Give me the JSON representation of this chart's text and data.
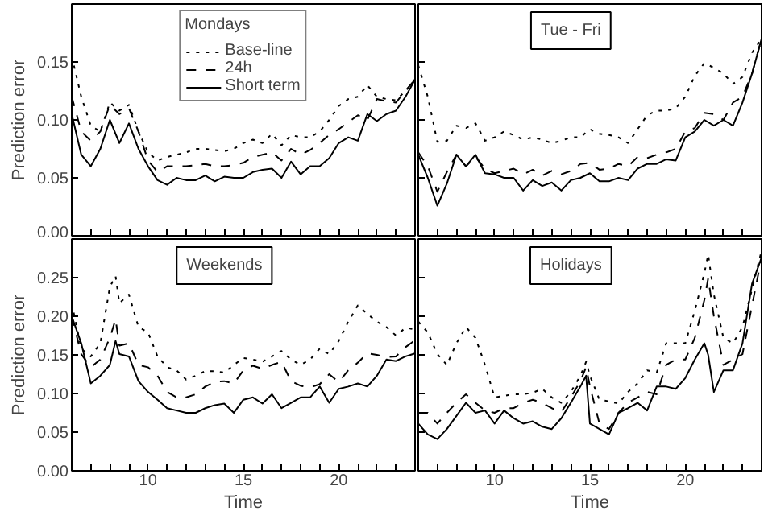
{
  "chart_data": [
    {
      "type": "line",
      "legend_title": "Mondays",
      "ylabel": "Prediction error",
      "legend": "top",
      "grid": false,
      "tick_labels": "y",
      "xlim": [
        6,
        24
      ],
      "ylim": [
        0,
        0.2
      ],
      "xticks": [
        {
          "value": 6,
          "label": null
        },
        {
          "value": 7,
          "label": null
        },
        {
          "value": 8,
          "label": null
        },
        {
          "value": 9,
          "label": null
        },
        {
          "value": 10,
          "label": null
        },
        {
          "value": 11,
          "label": null
        },
        {
          "value": 12,
          "label": null
        },
        {
          "value": 13,
          "label": null
        },
        {
          "value": 14,
          "label": null
        },
        {
          "value": 15,
          "label": null
        },
        {
          "value": 16,
          "label": null
        },
        {
          "value": 17,
          "label": null
        },
        {
          "value": 18,
          "label": null
        },
        {
          "value": 19,
          "label": null
        },
        {
          "value": 20,
          "label": null
        },
        {
          "value": 21,
          "label": null
        },
        {
          "value": 22,
          "label": null
        },
        {
          "value": 23,
          "label": null
        },
        {
          "value": 24,
          "label": null
        }
      ],
      "yticks": [
        {
          "value": 0,
          "label": "0.00"
        },
        {
          "value": 0.05,
          "label": "0.05"
        },
        {
          "value": 0.1,
          "label": "0.10"
        },
        {
          "value": 0.15,
          "label": "0.15"
        }
      ],
      "x": [
        6,
        6.5,
        7,
        7.5,
        8,
        8.5,
        9,
        9.5,
        10,
        10.5,
        11,
        11.5,
        12,
        12.5,
        13,
        13.5,
        14,
        14.5,
        15,
        15.5,
        16,
        16.5,
        17,
        17.5,
        18,
        18.5,
        19,
        19.5,
        20,
        20.5,
        21,
        21.5,
        22,
        22.5,
        23,
        23.5,
        24
      ],
      "series": [
        {
          "name": "Base-line",
          "color": "#000000",
          "line_style": "dotted",
          "values": [
            0.155,
            0.12,
            0.095,
            0.09,
            0.115,
            0.108,
            0.113,
            0.09,
            0.072,
            0.065,
            0.068,
            0.07,
            0.072,
            0.075,
            0.075,
            0.074,
            0.073,
            0.075,
            0.08,
            0.083,
            0.08,
            0.088,
            0.078,
            0.087,
            0.085,
            0.085,
            0.09,
            0.1,
            0.112,
            0.118,
            0.12,
            0.13,
            0.12,
            0.118,
            0.117,
            0.125,
            0.135
          ]
        },
        {
          "name": "24h",
          "color": "#000000",
          "line_style": "dashed",
          "values": [
            0.12,
            0.09,
            0.082,
            0.09,
            0.113,
            0.105,
            0.11,
            0.09,
            0.065,
            0.055,
            0.06,
            0.06,
            0.06,
            0.061,
            0.062,
            0.06,
            0.06,
            0.061,
            0.063,
            0.068,
            0.07,
            0.072,
            0.065,
            0.075,
            0.07,
            0.074,
            0.08,
            0.087,
            0.092,
            0.098,
            0.104,
            0.1,
            0.118,
            0.116,
            0.115,
            0.125,
            0.135
          ]
        },
        {
          "name": "Short term",
          "color": "#000000",
          "line_style": "solid",
          "values": [
            0.105,
            0.07,
            0.06,
            0.075,
            0.1,
            0.08,
            0.097,
            0.075,
            0.06,
            0.048,
            0.044,
            0.05,
            0.048,
            0.048,
            0.052,
            0.047,
            0.051,
            0.05,
            0.05,
            0.055,
            0.057,
            0.058,
            0.05,
            0.064,
            0.053,
            0.06,
            0.06,
            0.067,
            0.08,
            0.085,
            0.082,
            0.105,
            0.099,
            0.105,
            0.108,
            0.12,
            0.135
          ]
        }
      ]
    },
    {
      "type": "line",
      "title": "Tue - Fri",
      "grid": false,
      "tick_labels": false,
      "xlim": [
        6,
        24
      ],
      "ylim": [
        0,
        0.2
      ],
      "xticks": [
        {
          "value": 6,
          "label": null
        },
        {
          "value": 7,
          "label": null
        },
        {
          "value": 8,
          "label": null
        },
        {
          "value": 9,
          "label": null
        },
        {
          "value": 10,
          "label": null
        },
        {
          "value": 11,
          "label": null
        },
        {
          "value": 12,
          "label": null
        },
        {
          "value": 13,
          "label": null
        },
        {
          "value": 14,
          "label": null
        },
        {
          "value": 15,
          "label": null
        },
        {
          "value": 16,
          "label": null
        },
        {
          "value": 17,
          "label": null
        },
        {
          "value": 18,
          "label": null
        },
        {
          "value": 19,
          "label": null
        },
        {
          "value": 20,
          "label": null
        },
        {
          "value": 21,
          "label": null
        },
        {
          "value": 22,
          "label": null
        },
        {
          "value": 23,
          "label": null
        },
        {
          "value": 24,
          "label": null
        }
      ],
      "yticks": [
        {
          "value": 0,
          "label": null
        },
        {
          "value": 0.05,
          "label": null
        },
        {
          "value": 0.1,
          "label": null
        },
        {
          "value": 0.15,
          "label": null
        }
      ],
      "x": [
        6,
        6.5,
        7,
        7.5,
        8,
        8.5,
        9,
        9.5,
        10,
        10.5,
        11,
        11.5,
        12,
        12.5,
        13,
        13.5,
        14,
        14.5,
        15,
        15.5,
        16,
        16.5,
        17,
        17.5,
        18,
        18.5,
        19,
        19.5,
        20,
        20.5,
        21,
        21.5,
        22,
        22.5,
        23,
        23.5,
        24
      ],
      "series": [
        {
          "color": "#000000",
          "line_style": "dotted",
          "values": [
            0.147,
            0.12,
            0.081,
            0.082,
            0.095,
            0.093,
            0.097,
            0.082,
            0.085,
            0.09,
            0.087,
            0.083,
            0.085,
            0.083,
            0.08,
            0.082,
            0.085,
            0.085,
            0.092,
            0.088,
            0.087,
            0.085,
            0.08,
            0.092,
            0.104,
            0.108,
            0.108,
            0.11,
            0.12,
            0.138,
            0.149,
            0.145,
            0.14,
            0.131,
            0.137,
            0.158,
            0.17
          ]
        },
        {
          "color": "#000000",
          "line_style": "dashed",
          "values": [
            0.072,
            0.06,
            0.038,
            0.055,
            0.07,
            0.06,
            0.068,
            0.058,
            0.054,
            0.056,
            0.058,
            0.053,
            0.057,
            0.052,
            0.056,
            0.053,
            0.056,
            0.062,
            0.063,
            0.057,
            0.058,
            0.062,
            0.06,
            0.068,
            0.067,
            0.07,
            0.072,
            0.075,
            0.09,
            0.093,
            0.106,
            0.105,
            0.1,
            0.115,
            0.12,
            0.14,
            0.17
          ]
        },
        {
          "color": "#000000",
          "line_style": "solid",
          "values": [
            0.07,
            0.05,
            0.026,
            0.045,
            0.07,
            0.06,
            0.07,
            0.054,
            0.053,
            0.05,
            0.05,
            0.039,
            0.048,
            0.043,
            0.046,
            0.039,
            0.048,
            0.05,
            0.054,
            0.047,
            0.047,
            0.05,
            0.048,
            0.058,
            0.062,
            0.062,
            0.066,
            0.065,
            0.085,
            0.09,
            0.1,
            0.095,
            0.1,
            0.095,
            0.115,
            0.14,
            0.17
          ]
        }
      ]
    },
    {
      "type": "line",
      "title": "Weekends",
      "xlabel": "Time",
      "ylabel": "Prediction error",
      "grid": false,
      "xlim": [
        6,
        24
      ],
      "ylim": [
        0,
        0.3
      ],
      "xticks": [
        {
          "value": 6,
          "label": null
        },
        {
          "value": 7,
          "label": null
        },
        {
          "value": 8,
          "label": null
        },
        {
          "value": 9,
          "label": null
        },
        10,
        {
          "value": 11,
          "label": null
        },
        {
          "value": 12,
          "label": null
        },
        {
          "value": 13,
          "label": null
        },
        {
          "value": 14,
          "label": null
        },
        15,
        {
          "value": 16,
          "label": null
        },
        {
          "value": 17,
          "label": null
        },
        {
          "value": 18,
          "label": null
        },
        {
          "value": 19,
          "label": null
        },
        20,
        {
          "value": 21,
          "label": null
        },
        {
          "value": 22,
          "label": null
        },
        {
          "value": 23,
          "label": null
        },
        {
          "value": 24,
          "label": null
        }
      ],
      "yticks": [
        {
          "value": 0,
          "label": "0.00"
        },
        {
          "value": 0.05,
          "label": "0.05"
        },
        {
          "value": 0.1,
          "label": "0.10"
        },
        {
          "value": 0.15,
          "label": "0.15"
        },
        {
          "value": 0.2,
          "label": "0.20"
        },
        {
          "value": 0.25,
          "label": "0.25"
        }
      ],
      "x": [
        6,
        6.5,
        7,
        7.5,
        8,
        8.3,
        8.5,
        9,
        9.5,
        10,
        10.5,
        11,
        11.5,
        12,
        12.5,
        13,
        13.5,
        14,
        14.5,
        15,
        15.5,
        16,
        16.5,
        17,
        17.5,
        18,
        18.5,
        19,
        19.5,
        20,
        20.5,
        21,
        21.5,
        22,
        22.5,
        23,
        23.5,
        24
      ],
      "series": [
        {
          "color": "#000000",
          "line_style": "dotted",
          "values": [
            0.217,
            0.158,
            0.148,
            0.165,
            0.238,
            0.252,
            0.217,
            0.228,
            0.186,
            0.179,
            0.148,
            0.134,
            0.13,
            0.118,
            0.123,
            0.129,
            0.129,
            0.127,
            0.137,
            0.146,
            0.144,
            0.141,
            0.148,
            0.155,
            0.144,
            0.137,
            0.144,
            0.158,
            0.151,
            0.168,
            0.193,
            0.214,
            0.203,
            0.193,
            0.186,
            0.175,
            0.185,
            0.183
          ]
        },
        {
          "color": "#000000",
          "line_style": "dashed",
          "values": [
            0.2,
            0.151,
            0.134,
            0.144,
            0.172,
            0.196,
            0.162,
            0.165,
            0.137,
            0.134,
            0.123,
            0.102,
            0.095,
            0.095,
            0.099,
            0.109,
            0.115,
            0.116,
            0.113,
            0.13,
            0.136,
            0.132,
            0.137,
            0.141,
            0.116,
            0.11,
            0.108,
            0.112,
            0.125,
            0.115,
            0.13,
            0.14,
            0.152,
            0.15,
            0.147,
            0.148,
            0.16,
            0.169
          ]
        },
        {
          "color": "#000000",
          "line_style": "solid",
          "values": [
            0.2,
            0.165,
            0.113,
            0.123,
            0.137,
            0.168,
            0.151,
            0.148,
            0.116,
            0.102,
            0.092,
            0.081,
            0.078,
            0.075,
            0.075,
            0.081,
            0.085,
            0.087,
            0.075,
            0.092,
            0.095,
            0.087,
            0.099,
            0.081,
            0.088,
            0.095,
            0.095,
            0.109,
            0.088,
            0.106,
            0.109,
            0.113,
            0.109,
            0.123,
            0.144,
            0.142,
            0.148,
            0.152
          ]
        }
      ]
    },
    {
      "type": "line",
      "title": "Holidays",
      "xlabel": "Time",
      "grid": false,
      "tick_labels": "x",
      "xlim": [
        6,
        24
      ],
      "ylim": [
        0,
        0.3
      ],
      "xticks": [
        {
          "value": 6,
          "label": null
        },
        {
          "value": 7,
          "label": null
        },
        {
          "value": 8,
          "label": null
        },
        {
          "value": 9,
          "label": null
        },
        10,
        {
          "value": 11,
          "label": null
        },
        {
          "value": 12,
          "label": null
        },
        {
          "value": 13,
          "label": null
        },
        {
          "value": 14,
          "label": null
        },
        15,
        {
          "value": 16,
          "label": null
        },
        {
          "value": 17,
          "label": null
        },
        {
          "value": 18,
          "label": null
        },
        {
          "value": 19,
          "label": null
        },
        20,
        {
          "value": 21,
          "label": null
        },
        {
          "value": 22,
          "label": null
        },
        {
          "value": 23,
          "label": null
        },
        {
          "value": 24,
          "label": null
        }
      ],
      "yticks": [
        {
          "value": 0,
          "label": null
        },
        {
          "value": 0.05,
          "label": null
        },
        {
          "value": 0.1,
          "label": null
        },
        {
          "value": 0.15,
          "label": null
        },
        {
          "value": 0.2,
          "label": null
        },
        {
          "value": 0.25,
          "label": null
        }
      ],
      "x": [
        6,
        6.5,
        7,
        7.5,
        8,
        8.5,
        9,
        9.5,
        10,
        10.5,
        11,
        11.5,
        12,
        12.5,
        13,
        13.5,
        14,
        14.5,
        14.8,
        15,
        15.5,
        16,
        16.5,
        17,
        17.5,
        18,
        18.5,
        19,
        19.5,
        20,
        20.5,
        21,
        21.2,
        21.5,
        22,
        22.5,
        23,
        23.5,
        24
      ],
      "series": [
        {
          "color": "#000000",
          "line_style": "dotted",
          "values": [
            0.193,
            0.179,
            0.151,
            0.137,
            0.165,
            0.186,
            0.172,
            0.137,
            0.095,
            0.097,
            0.099,
            0.099,
            0.101,
            0.106,
            0.095,
            0.088,
            0.102,
            0.123,
            0.141,
            0.123,
            0.092,
            0.09,
            0.087,
            0.102,
            0.113,
            0.13,
            0.127,
            0.165,
            0.165,
            0.165,
            0.207,
            0.256,
            0.28,
            0.228,
            0.172,
            0.165,
            0.186,
            0.235,
            0.285
          ]
        },
        {
          "color": "#000000",
          "line_style": "dashed",
          "values": [
            0.075,
            0.075,
            0.061,
            0.075,
            0.088,
            0.099,
            0.088,
            0.078,
            0.075,
            0.081,
            0.081,
            0.088,
            0.092,
            0.088,
            0.081,
            0.076,
            0.095,
            0.116,
            0.134,
            0.109,
            0.061,
            0.054,
            0.075,
            0.088,
            0.095,
            0.102,
            0.099,
            0.137,
            0.144,
            0.144,
            0.172,
            0.221,
            0.249,
            0.2,
            0.137,
            0.144,
            0.151,
            0.214,
            0.276
          ]
        },
        {
          "color": "#000000",
          "line_style": "solid",
          "values": [
            0.061,
            0.047,
            0.041,
            0.054,
            0.071,
            0.088,
            0.075,
            0.078,
            0.061,
            0.078,
            0.068,
            0.061,
            0.064,
            0.057,
            0.054,
            0.068,
            0.088,
            0.109,
            0.123,
            0.061,
            0.054,
            0.047,
            0.075,
            0.081,
            0.088,
            0.078,
            0.109,
            0.109,
            0.106,
            0.12,
            0.144,
            0.165,
            0.15,
            0.102,
            0.13,
            0.13,
            0.165,
            0.242,
            0.276
          ]
        }
      ]
    }
  ]
}
